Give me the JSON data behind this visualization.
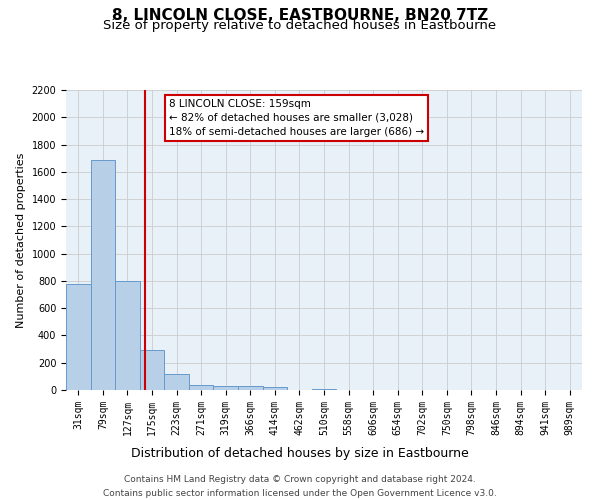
{
  "title": "8, LINCOLN CLOSE, EASTBOURNE, BN20 7TZ",
  "subtitle": "Size of property relative to detached houses in Eastbourne",
  "xlabel": "Distribution of detached houses by size in Eastbourne",
  "ylabel": "Number of detached properties",
  "bar_labels": [
    "31sqm",
    "79sqm",
    "127sqm",
    "175sqm",
    "223sqm",
    "271sqm",
    "319sqm",
    "366sqm",
    "414sqm",
    "462sqm",
    "510sqm",
    "558sqm",
    "606sqm",
    "654sqm",
    "702sqm",
    "750sqm",
    "798sqm",
    "846sqm",
    "894sqm",
    "941sqm",
    "989sqm"
  ],
  "bar_values": [
    780,
    1690,
    800,
    295,
    115,
    40,
    30,
    30,
    20,
    0,
    10,
    0,
    0,
    0,
    0,
    0,
    0,
    0,
    0,
    0,
    0
  ],
  "bar_color": "#b8cfe8",
  "bar_edge_color": "#6699cc",
  "property_line_x": 2.73,
  "property_line_color": "#cc0000",
  "annotation_title": "8 LINCOLN CLOSE: 159sqm",
  "annotation_line1": "← 82% of detached houses are smaller (3,028)",
  "annotation_line2": "18% of semi-detached houses are larger (686) →",
  "annotation_box_color": "#ffffff",
  "annotation_box_edge_color": "#cc0000",
  "ylim": [
    0,
    2200
  ],
  "yticks": [
    0,
    200,
    400,
    600,
    800,
    1000,
    1200,
    1400,
    1600,
    1800,
    2000,
    2200
  ],
  "grid_color": "#cccccc",
  "bg_color": "#e8f0f8",
  "footer_line1": "Contains HM Land Registry data © Crown copyright and database right 2024.",
  "footer_line2": "Contains public sector information licensed under the Open Government Licence v3.0.",
  "title_fontsize": 11,
  "subtitle_fontsize": 9.5,
  "xlabel_fontsize": 9,
  "ylabel_fontsize": 8,
  "tick_fontsize": 7,
  "footer_fontsize": 6.5,
  "annotation_fontsize": 7.5
}
